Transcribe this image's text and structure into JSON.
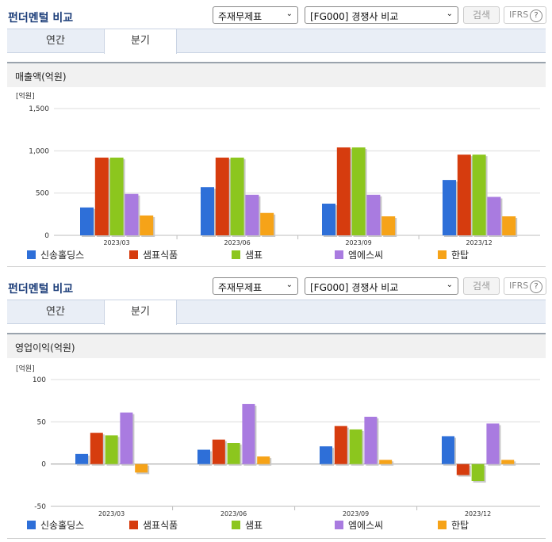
{
  "sections": [
    {
      "title": "펀더멘털 비교",
      "select1": "주재무제표",
      "select2": "[FG000] 경쟁사 비교",
      "search_label": "검색",
      "ifrs_label": "IFRS",
      "ifrs_help": "?",
      "tabs": [
        {
          "label": "연간"
        },
        {
          "label": "분기"
        }
      ],
      "active_tab": 1,
      "metric": "매출액(억원)"
    },
    {
      "title": "펀더멘털 비교",
      "select1": "주재무제표",
      "select2": "[FG000] 경쟁사 비교",
      "search_label": "검색",
      "ifrs_label": "IFRS",
      "ifrs_help": "?",
      "tabs": [
        {
          "label": "연간"
        },
        {
          "label": "분기"
        }
      ],
      "active_tab": 1,
      "metric": "영업이익(억원)"
    }
  ],
  "chart_data": [
    {
      "type": "bar",
      "title": "매출액(억원)",
      "unit_label": "[억원]",
      "categories": [
        "2023/03",
        "2023/06",
        "2023/09",
        "2023/12"
      ],
      "ylim": [
        0,
        1500
      ],
      "yticks": [
        0,
        500,
        1000,
        1500
      ],
      "ytick_labels": [
        "0",
        "500",
        "1,000",
        "1,500"
      ],
      "grid": true,
      "legend": "bottom",
      "series": [
        {
          "name": "신송홀딩스",
          "color": "#2e6fd8",
          "values": [
            330,
            570,
            375,
            655
          ]
        },
        {
          "name": "샘표식품",
          "color": "#d63c0e",
          "values": [
            920,
            920,
            1040,
            955
          ]
        },
        {
          "name": "샘표",
          "color": "#8cc61e",
          "values": [
            920,
            920,
            1040,
            955
          ]
        },
        {
          "name": "엠에스씨",
          "color": "#a97be0",
          "values": [
            490,
            480,
            480,
            455
          ]
        },
        {
          "name": "한탑",
          "color": "#f6a318",
          "values": [
            235,
            265,
            225,
            225
          ]
        }
      ]
    },
    {
      "type": "bar",
      "title": "영업이익(억원)",
      "unit_label": "[억원]",
      "categories": [
        "2023/03",
        "2023/06",
        "2023/09",
        "2023/12"
      ],
      "ylim": [
        -50,
        100
      ],
      "yticks": [
        -50,
        0,
        50,
        100
      ],
      "ytick_labels": [
        "-50",
        "0",
        "50",
        "100"
      ],
      "grid": true,
      "legend": "bottom",
      "series": [
        {
          "name": "신송홀딩스",
          "color": "#2e6fd8",
          "values": [
            12,
            17,
            21,
            33
          ]
        },
        {
          "name": "샘표식품",
          "color": "#d63c0e",
          "values": [
            37,
            29,
            45,
            -13
          ]
        },
        {
          "name": "샘표",
          "color": "#8cc61e",
          "values": [
            34,
            25,
            41,
            -20
          ]
        },
        {
          "name": "엠에스씨",
          "color": "#a97be0",
          "values": [
            61,
            71,
            56,
            48
          ]
        },
        {
          "name": "한탑",
          "color": "#f6a318",
          "values": [
            -10,
            9,
            5,
            5
          ]
        }
      ]
    }
  ]
}
